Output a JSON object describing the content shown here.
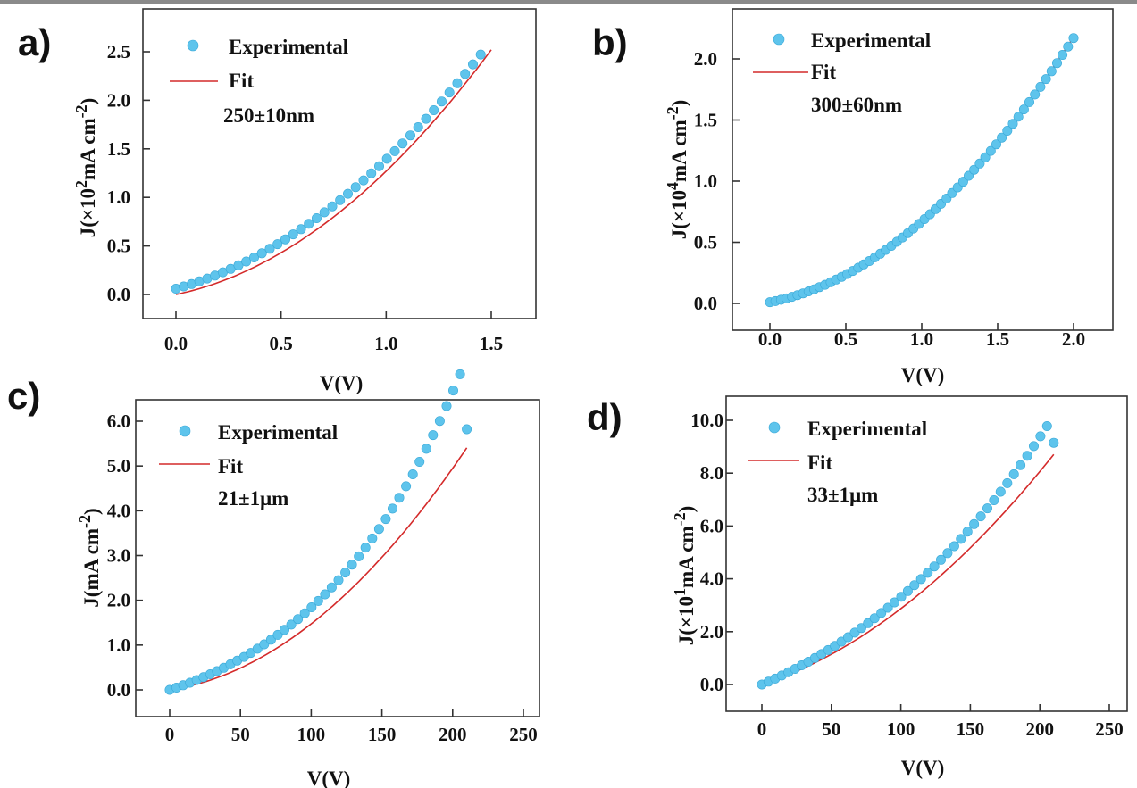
{
  "chart_data": [
    {
      "panel": "a)",
      "type": "scatter",
      "xlabel": "V(V)",
      "ylabel": {
        "pre": "J(×10",
        "sup1": "2",
        "mid": "mA cm",
        "sup2": "-2",
        "post": ")"
      },
      "xlim": [
        0,
        1.5
      ],
      "ylim": [
        0,
        2.5
      ],
      "xticks": [
        "0.0",
        "0.5",
        "1.0",
        "1.5"
      ],
      "yticks": [
        "0.0",
        "0.5",
        "1.0",
        "1.5",
        "2.0",
        "2.5"
      ],
      "legend": [
        "Experimental",
        "Fit"
      ],
      "annotation": "250±10nm",
      "series": [
        {
          "name": "Experimental",
          "kind": "points",
          "x_range": [
            0,
            1.45
          ],
          "count": 40,
          "model": {
            "a": 0.06,
            "b": 0.59,
            "c": 0.74
          }
        },
        {
          "name": "Fit",
          "kind": "line",
          "x_range": [
            0,
            1.5
          ],
          "model": {
            "a": 0.0,
            "b": 0.45,
            "c": 0.82
          }
        }
      ]
    },
    {
      "panel": "b)",
      "type": "scatter",
      "xlabel": "V(V)",
      "ylabel": {
        "pre": "J(×10",
        "sup1": "4",
        "mid": "mA cm",
        "sup2": "-2",
        "post": ")"
      },
      "xlim": [
        0,
        2.0
      ],
      "ylim": [
        0,
        2.0
      ],
      "xticks": [
        "0.0",
        "0.5",
        "1.0",
        "1.5",
        "2.0"
      ],
      "yticks": [
        "0.0",
        "0.5",
        "1.0",
        "1.5",
        "2.0"
      ],
      "legend": [
        "Experimental",
        "Fit"
      ],
      "annotation": "300±60nm",
      "series": [
        {
          "name": "Experimental",
          "kind": "points",
          "x_range": [
            0,
            2.0
          ],
          "count": 56,
          "model": {
            "a": 0.01,
            "b": 0.24,
            "c": 0.42
          }
        },
        {
          "name": "Fit",
          "kind": "line",
          "x_range": [
            0,
            2.0
          ],
          "model": {
            "a": 0.0,
            "b": 0.25,
            "c": 0.42
          }
        }
      ]
    },
    {
      "panel": "c)",
      "type": "scatter",
      "xlabel": "V(V)",
      "ylabel": {
        "pre": "J(mA cm",
        "sup1": "",
        "mid": "",
        "sup2": "-2",
        "post": ")"
      },
      "xlim": [
        0,
        250
      ],
      "ylim": [
        0,
        6.0
      ],
      "xticks": [
        "0",
        "50",
        "100",
        "150",
        "200",
        "250"
      ],
      "yticks": [
        "0.0",
        "1.0",
        "2.0",
        "3.0",
        "4.0",
        "5.0",
        "6.0"
      ],
      "legend": [
        "Experimental",
        "Fit"
      ],
      "annotation": "21±1μm",
      "series": [
        {
          "name": "Experimental",
          "kind": "points",
          "x_range": [
            0,
            210
          ],
          "count": 45,
          "model": {
            "a": 0.0,
            "b": 0.0101,
            "c": 7.18e-05,
            "p": 1.1e-09
          },
          "last_y": 5.82
        },
        {
          "name": "Fit",
          "kind": "line",
          "x_range": [
            0,
            210
          ],
          "model": {
            "a": 0.0,
            "b": 0.00474,
            "c": 0.0001,
            "p": 0.0
          }
        }
      ]
    },
    {
      "panel": "d)",
      "type": "scatter",
      "xlabel": "V(V)",
      "ylabel": {
        "pre": "J(×10",
        "sup1": "1",
        "mid": "mA cm",
        "sup2": "-2",
        "post": ")"
      },
      "xlim": [
        0,
        250
      ],
      "ylim": [
        0,
        10.0
      ],
      "xticks": [
        "0",
        "50",
        "100",
        "150",
        "200",
        "250"
      ],
      "yticks": [
        "0.0",
        "2.0",
        "4.0",
        "6.0",
        "8.0",
        "10.0"
      ],
      "legend": [
        "Experimental",
        "Fit"
      ],
      "annotation": "33±1μm",
      "series": [
        {
          "name": "Experimental",
          "kind": "points",
          "x_range": [
            0,
            210
          ],
          "count": 45,
          "model": {
            "a": 0.0,
            "b": 0.0224,
            "c": 0.000102,
            "p": 5e-10
          },
          "last_y": 9.15
        },
        {
          "name": "Fit",
          "kind": "line",
          "x_range": [
            0,
            210
          ],
          "model": {
            "a": 0.0,
            "b": 0.0171,
            "c": 0.000116,
            "p": 0.0
          }
        }
      ]
    }
  ],
  "colors": {
    "experimental": "#5ec4ec",
    "fit": "#d42a2a",
    "axis": "#333333"
  }
}
